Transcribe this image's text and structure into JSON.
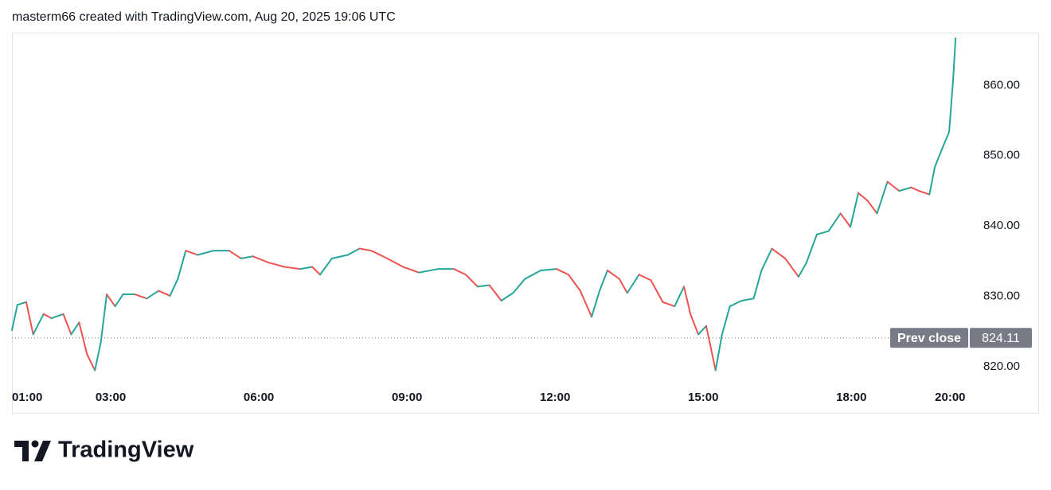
{
  "chart_data": {
    "type": "line",
    "title": "masterm66 created with TradingView.com, Aug 20, 2025 19:06 UTC",
    "x": [
      1.0,
      1.11,
      1.29,
      1.43,
      1.64,
      1.8,
      2.04,
      2.2,
      2.36,
      2.52,
      2.68,
      2.8,
      2.92,
      3.09,
      3.25,
      3.49,
      3.73,
      3.97,
      4.2,
      4.36,
      4.52,
      4.76,
      5.08,
      5.4,
      5.64,
      5.88,
      6.2,
      6.52,
      6.84,
      7.08,
      7.24,
      7.48,
      7.8,
      8.04,
      8.28,
      8.6,
      8.92,
      9.24,
      9.63,
      9.95,
      10.19,
      10.43,
      10.67,
      10.91,
      11.15,
      11.39,
      11.71,
      12.03,
      12.27,
      12.51,
      12.74,
      12.9,
      13.06,
      13.3,
      13.46,
      13.7,
      13.94,
      14.18,
      14.42,
      14.61,
      14.74,
      14.9,
      15.06,
      15.25,
      15.38,
      15.54,
      15.78,
      16.02,
      16.18,
      16.39,
      16.66,
      16.93,
      17.09,
      17.3,
      17.54,
      17.78,
      17.98,
      18.14,
      18.33,
      18.52,
      18.73,
      18.97,
      19.21,
      19.37,
      19.58,
      19.69,
      19.85,
      19.98,
      20.06,
      20.11
    ],
    "values": [
      825.2,
      828.8,
      829.2,
      824.6,
      827.5,
      826.9,
      827.5,
      824.6,
      826.3,
      821.8,
      819.5,
      823.5,
      830.3,
      828.6,
      830.3,
      830.3,
      829.7,
      830.8,
      830.1,
      832.5,
      836.5,
      835.9,
      836.5,
      836.5,
      835.4,
      835.7,
      834.8,
      834.2,
      833.9,
      834.2,
      833.1,
      835.4,
      835.9,
      836.8,
      836.5,
      835.4,
      834.2,
      833.4,
      833.9,
      833.9,
      833.1,
      831.4,
      831.6,
      829.4,
      830.5,
      832.5,
      833.7,
      833.9,
      833.1,
      830.8,
      827.1,
      830.8,
      833.7,
      832.5,
      830.5,
      833.1,
      832.3,
      829.2,
      828.6,
      831.4,
      827.5,
      824.6,
      825.8,
      819.5,
      824.6,
      828.6,
      829.4,
      829.7,
      833.7,
      836.8,
      835.4,
      832.8,
      834.8,
      838.8,
      839.3,
      841.8,
      839.9,
      844.7,
      843.6,
      841.8,
      846.3,
      845.0,
      845.5,
      845.0,
      844.5,
      848.4,
      851.2,
      853.4,
      860.8,
      866.7
    ],
    "up_color": "#26a69a",
    "down_color": "#ef5350",
    "xlim": [
      1.0,
      20.43
    ],
    "xticks": [
      {
        "value": 1,
        "label": "01:00"
      },
      {
        "value": 3,
        "label": "03:00"
      },
      {
        "value": 6,
        "label": "06:00"
      },
      {
        "value": 9,
        "label": "09:00"
      },
      {
        "value": 12,
        "label": "12:00"
      },
      {
        "value": 15,
        "label": "15:00"
      },
      {
        "value": 18,
        "label": "18:00"
      },
      {
        "value": 20,
        "label": "20:00"
      }
    ],
    "ylim": [
      817.3,
      867.5
    ],
    "yticks": [
      {
        "value": 820,
        "label": "820.00"
      },
      {
        "value": 830,
        "label": "830.00"
      },
      {
        "value": 840,
        "label": "840.00"
      },
      {
        "value": 850,
        "label": "850.00"
      },
      {
        "value": 860,
        "label": "860.00"
      }
    ],
    "prev_close": {
      "label": "Prev close",
      "value": 824.11
    }
  },
  "brand": "TradingView"
}
